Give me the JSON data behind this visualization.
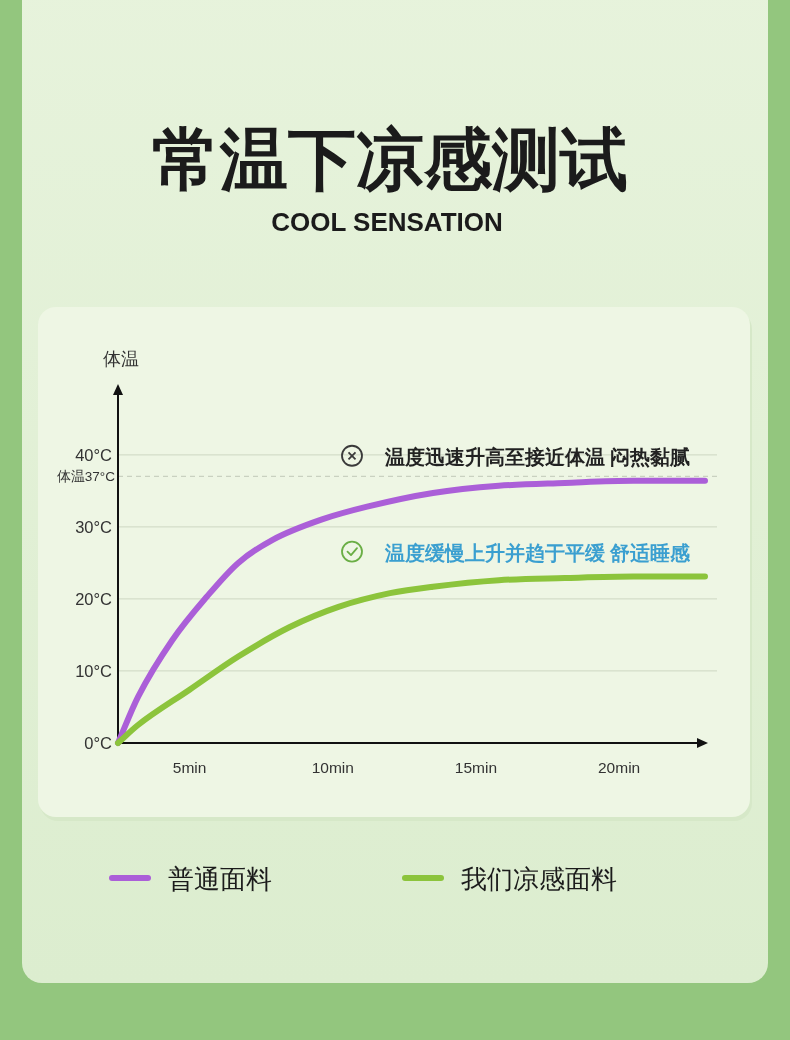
{
  "chart_data": {
    "type": "line",
    "title": "常温下凉感测试",
    "subtitle": "COOL SENSATION",
    "ylabel": "体温",
    "xlim": [
      2.5,
      23
    ],
    "ylim": [
      0,
      49
    ],
    "xticks": [
      {
        "value": 5,
        "label": "5min"
      },
      {
        "value": 10,
        "label": "10min"
      },
      {
        "value": 15,
        "label": "15min"
      },
      {
        "value": 20,
        "label": "20min"
      }
    ],
    "yticks": [
      {
        "value": 0,
        "label": "0°C"
      },
      {
        "value": 10,
        "label": "10°C"
      },
      {
        "value": 20,
        "label": "20°C"
      },
      {
        "value": 30,
        "label": "30°C"
      },
      {
        "value": 40,
        "label": "40°C"
      }
    ],
    "grid": "y",
    "ref_lines": [
      {
        "axis": "y",
        "value": 37,
        "label": "体温37°C",
        "line_style": "dashed",
        "color": "#c9d1c0"
      }
    ],
    "annotations": [
      "温度迅速升高至接近体温 闷热黏腻",
      "温度缓慢上升并趋于平缓 舒适睡感"
    ],
    "legend": "bottom",
    "series": [
      {
        "name": "普通面料",
        "color": "#ab5fd8",
        "x": [
          2.5,
          3.2,
          4.4,
          5.6,
          6.7,
          7.9,
          9.6,
          11.2,
          13.5,
          15.8,
          18.1,
          20.5,
          23
        ],
        "values": [
          0,
          6.4,
          14.3,
          20.3,
          25,
          28.2,
          31,
          32.8,
          34.7,
          35.7,
          36.1,
          36.4,
          36.4
        ]
      },
      {
        "name": "我们凉感面料",
        "color": "#8cc43c",
        "x": [
          2.5,
          3.2,
          5,
          6.7,
          8.5,
          10.2,
          12,
          13.5,
          15.8,
          18.1,
          20.5,
          23
        ],
        "values": [
          0,
          2.5,
          7.4,
          12,
          16.1,
          18.9,
          20.8,
          21.7,
          22.6,
          22.9,
          23.1,
          23.1
        ]
      }
    ]
  }
}
